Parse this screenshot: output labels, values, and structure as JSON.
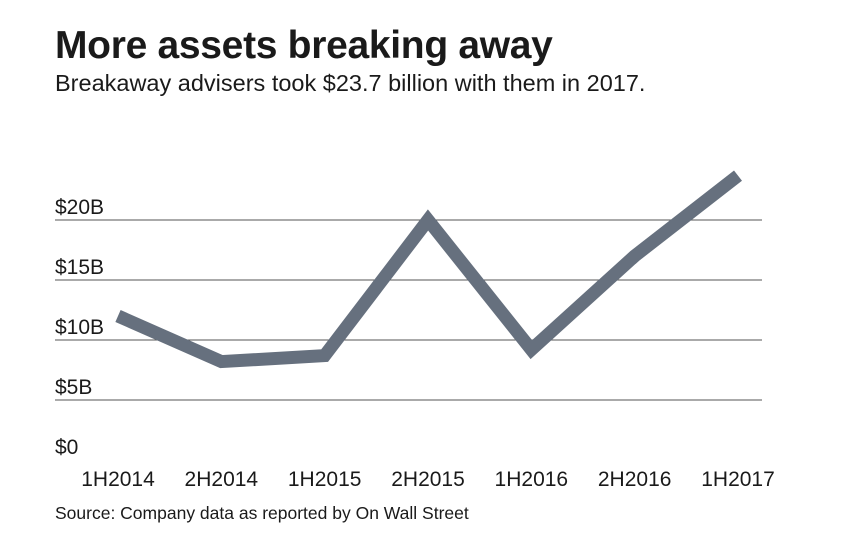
{
  "title": "More assets breaking away",
  "subtitle": "Breakaway advisers took $23.7 billion with them in 2017.",
  "source": "Source: Company data as reported by On Wall Street",
  "chart_data": {
    "type": "line",
    "categories": [
      "1H2014",
      "2H2014",
      "1H2015",
      "2H2015",
      "1H2016",
      "2H2016",
      "1H2017"
    ],
    "series": [
      {
        "values": [
          12,
          8.2,
          8.7,
          20,
          9.2,
          17,
          23.7
        ]
      }
    ],
    "ylim": [
      0,
      25
    ],
    "yticks": [
      0,
      5,
      10,
      15,
      20
    ],
    "ytick_labels": [
      "$0",
      "$5B",
      "$10B",
      "$15B",
      "$20B"
    ],
    "grid": "horizontal",
    "line_color": "#66707e",
    "grid_color": "#555555"
  }
}
